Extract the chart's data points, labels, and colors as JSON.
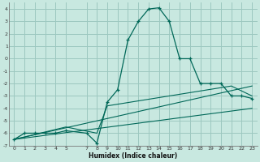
{
  "xlabel": "Humidex (Indice chaleur)",
  "xlim": [
    -0.5,
    23.5
  ],
  "ylim": [
    -7,
    4.5
  ],
  "yticks": [
    4,
    3,
    2,
    1,
    0,
    -1,
    -2,
    -3,
    -4,
    -5,
    -6,
    -7
  ],
  "xticks": [
    0,
    1,
    2,
    3,
    4,
    5,
    7,
    8,
    9,
    10,
    11,
    12,
    13,
    14,
    15,
    16,
    17,
    18,
    19,
    20,
    21,
    22,
    23
  ],
  "background_color": "#c8e8e0",
  "grid_color": "#9cc8c0",
  "line_color": "#006858",
  "main_x": [
    0,
    1,
    2,
    3,
    4,
    5,
    7,
    8,
    9,
    10,
    11,
    12,
    13,
    14,
    15,
    16,
    17,
    18,
    19,
    20,
    21,
    22,
    23
  ],
  "main_y": [
    -6.5,
    -6.0,
    -6.0,
    -6.0,
    -6.0,
    -5.8,
    -6.0,
    -6.8,
    -3.5,
    -2.5,
    1.5,
    3.0,
    4.0,
    4.1,
    3.0,
    0.0,
    0.0,
    -2.0,
    -2.0,
    -2.0,
    -3.0,
    -3.0,
    -3.2
  ],
  "line1_x": [
    0,
    23
  ],
  "line1_y": [
    -6.5,
    -2.2
  ],
  "line2_x": [
    0,
    23
  ],
  "line2_y": [
    -6.5,
    -4.0
  ],
  "line3_x": [
    0,
    5,
    8,
    9,
    21,
    23
  ],
  "line3_y": [
    -6.5,
    -5.5,
    -6.0,
    -3.8,
    -2.2,
    -3.0
  ]
}
